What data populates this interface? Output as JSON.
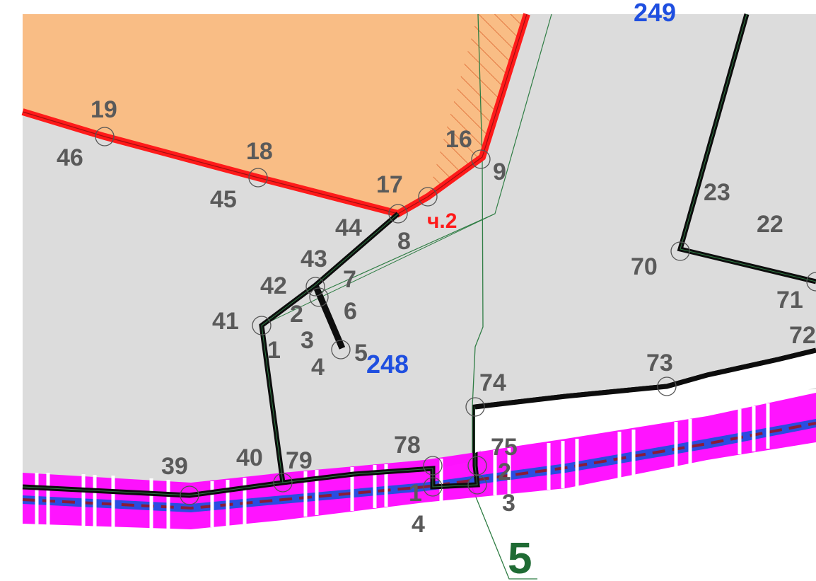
{
  "parcels": {
    "main_number": "248",
    "top_number": "249",
    "right_number": "22",
    "part_label": "ч.2",
    "zone_number": "5"
  },
  "colors": {
    "background": "#ffffff",
    "parcel_fill": "#dcdcdc",
    "zone_fill": "#f9bd85",
    "red_boundary": "#ff1a1a",
    "black_boundary": "#0d0d0d",
    "pink_strip": "#ff00ff",
    "blue_strip": "#2a4de0",
    "green_line": "#2f7d44"
  },
  "points": {
    "p19": "19",
    "p46": "46",
    "p18": "18",
    "p45": "45",
    "p17": "17",
    "p44": "44",
    "p8": "8",
    "p16": "16",
    "p9": "9",
    "p43": "43",
    "p42": "42",
    "p7": "7",
    "p2a": "2",
    "p6": "6",
    "p41": "41",
    "p1a": "1",
    "p3a": "3",
    "p4a": "4",
    "p5a": "5",
    "p23": "23",
    "p70": "70",
    "p71": "71",
    "p72": "72",
    "p73": "73",
    "p74": "74",
    "p75": "75",
    "p78": "78",
    "p2b": "2",
    "p1b": "1",
    "p3b": "3",
    "p4b": "4",
    "p39": "39",
    "p40": "40",
    "p79": "79"
  }
}
